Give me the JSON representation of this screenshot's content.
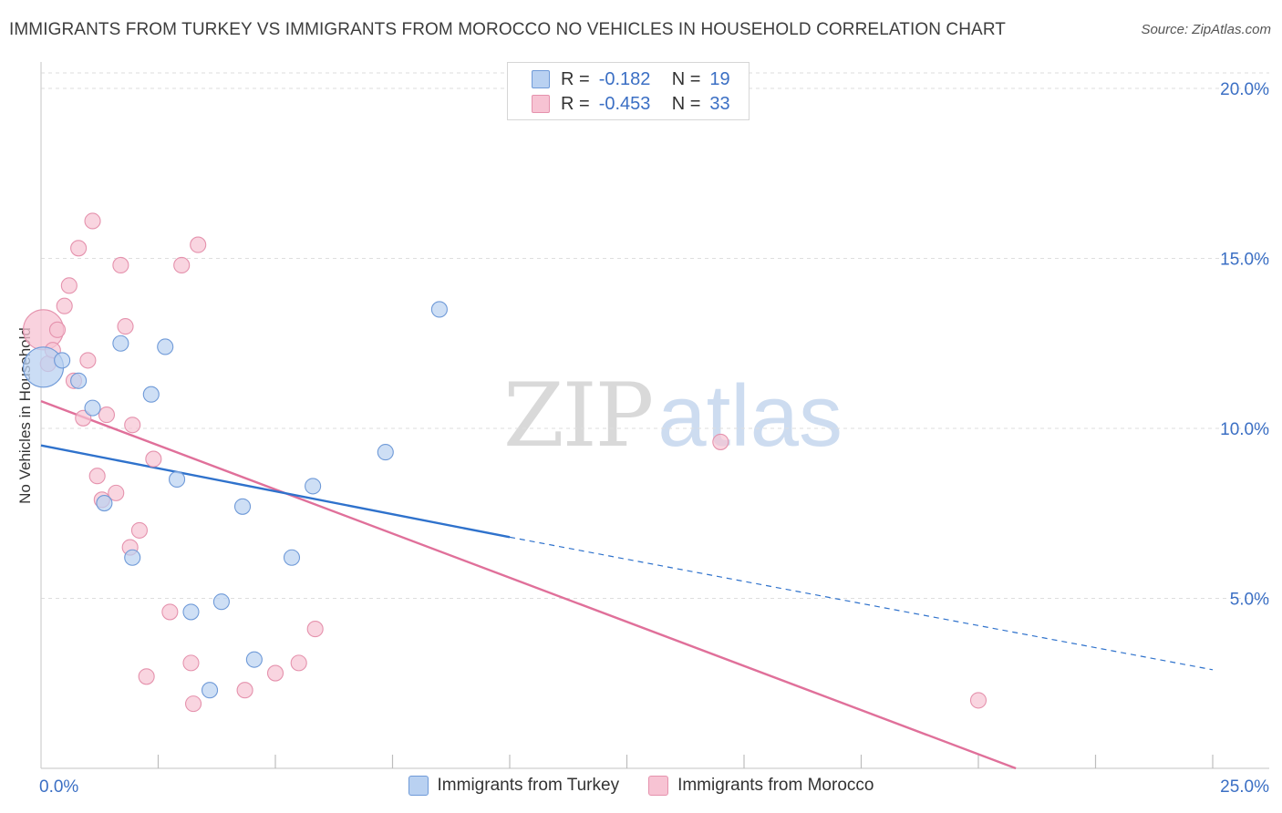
{
  "title": "IMMIGRANTS FROM TURKEY VS IMMIGRANTS FROM MOROCCO NO VEHICLES IN HOUSEHOLD CORRELATION CHART",
  "source": "Source: ZipAtlas.com",
  "watermark": {
    "zip": "ZIP",
    "atlas": "atlas"
  },
  "legend_top": [
    {
      "r_label": "R =",
      "r_value": "-0.182",
      "n_label": "N =",
      "n_value": "19"
    },
    {
      "r_label": "R =",
      "r_value": "-0.453",
      "n_label": "N =",
      "n_value": "33"
    }
  ],
  "colors": {
    "turkey_fill": "#b9d1f1",
    "turkey_stroke": "#6f9ad8",
    "turkey_line": "#2f72cc",
    "morocco_fill": "#f7c3d3",
    "morocco_stroke": "#e592ad",
    "morocco_line": "#e0709a",
    "tick_label": "#3b6fc4",
    "grid": "#dedede"
  },
  "chart_data": {
    "type": "scatter",
    "title": "IMMIGRANTS FROM TURKEY VS IMMIGRANTS FROM MOROCCO NO VEHICLES IN HOUSEHOLD CORRELATION CHART",
    "xlabel": "",
    "ylabel": "No Vehicles in Household",
    "xlim": [
      0,
      25
    ],
    "ylim": [
      0,
      20
    ],
    "x_tick_labels": [
      "0.0%",
      "25.0%"
    ],
    "y_ticks": [
      5,
      10,
      15,
      20
    ],
    "y_tick_labels": [
      "5.0%",
      "10.0%",
      "15.0%",
      "20.0%"
    ],
    "series": [
      {
        "name": "Immigrants from Turkey",
        "r": -0.182,
        "n": 19,
        "points": [
          {
            "x": 0.05,
            "y": 11.8,
            "big": true
          },
          {
            "x": 0.45,
            "y": 12.0
          },
          {
            "x": 0.8,
            "y": 11.4
          },
          {
            "x": 1.1,
            "y": 10.6
          },
          {
            "x": 1.35,
            "y": 7.8
          },
          {
            "x": 1.7,
            "y": 12.5
          },
          {
            "x": 1.95,
            "y": 6.2
          },
          {
            "x": 2.35,
            "y": 11.0
          },
          {
            "x": 2.65,
            "y": 12.4
          },
          {
            "x": 2.9,
            "y": 8.5
          },
          {
            "x": 3.2,
            "y": 4.6
          },
          {
            "x": 3.6,
            "y": 2.3
          },
          {
            "x": 3.85,
            "y": 4.9
          },
          {
            "x": 4.3,
            "y": 7.7
          },
          {
            "x": 4.55,
            "y": 3.2
          },
          {
            "x": 5.35,
            "y": 6.2
          },
          {
            "x": 5.8,
            "y": 8.3
          },
          {
            "x": 7.35,
            "y": 9.3
          },
          {
            "x": 8.5,
            "y": 13.5
          }
        ],
        "trend": {
          "x0": 0,
          "y0": 9.5,
          "x1": 10.0,
          "y1": 6.8,
          "dash_x1": 25.0,
          "dash_y1": 2.9
        }
      },
      {
        "name": "Immigrants from Morocco",
        "r": -0.453,
        "n": 33,
        "points": [
          {
            "x": 0.05,
            "y": 12.9,
            "big": true
          },
          {
            "x": 0.15,
            "y": 11.9
          },
          {
            "x": 0.25,
            "y": 12.3
          },
          {
            "x": 0.35,
            "y": 12.9
          },
          {
            "x": 0.5,
            "y": 13.6
          },
          {
            "x": 0.6,
            "y": 14.2
          },
          {
            "x": 0.7,
            "y": 11.4
          },
          {
            "x": 0.8,
            "y": 15.3
          },
          {
            "x": 0.9,
            "y": 10.3
          },
          {
            "x": 1.0,
            "y": 12.0
          },
          {
            "x": 1.1,
            "y": 16.1
          },
          {
            "x": 1.2,
            "y": 8.6
          },
          {
            "x": 1.3,
            "y": 7.9
          },
          {
            "x": 1.4,
            "y": 10.4
          },
          {
            "x": 1.6,
            "y": 8.1
          },
          {
            "x": 1.7,
            "y": 14.8
          },
          {
            "x": 1.8,
            "y": 13.0
          },
          {
            "x": 1.9,
            "y": 6.5
          },
          {
            "x": 1.95,
            "y": 10.1
          },
          {
            "x": 2.1,
            "y": 7.0
          },
          {
            "x": 2.25,
            "y": 2.7
          },
          {
            "x": 2.4,
            "y": 9.1
          },
          {
            "x": 2.75,
            "y": 4.6
          },
          {
            "x": 3.0,
            "y": 14.8
          },
          {
            "x": 3.2,
            "y": 3.1
          },
          {
            "x": 3.25,
            "y": 1.9
          },
          {
            "x": 3.35,
            "y": 15.4
          },
          {
            "x": 4.35,
            "y": 2.3
          },
          {
            "x": 5.0,
            "y": 2.8
          },
          {
            "x": 5.5,
            "y": 3.1
          },
          {
            "x": 5.85,
            "y": 4.1
          },
          {
            "x": 14.5,
            "y": 9.6
          },
          {
            "x": 20.0,
            "y": 2.0
          }
        ],
        "trend": {
          "x0": 0,
          "y0": 10.8,
          "x1": 20.8,
          "y1": 0
        }
      }
    ]
  }
}
